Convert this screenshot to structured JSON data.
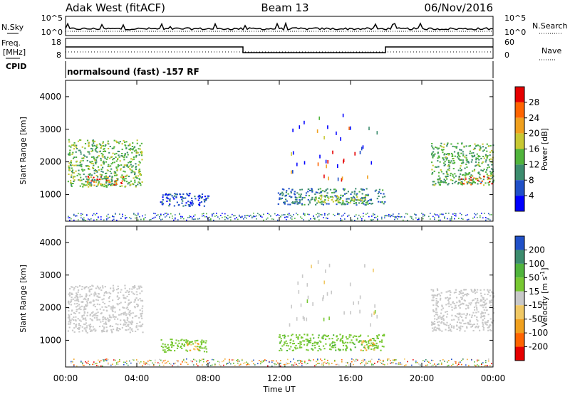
{
  "header": {
    "station": "Adak West (fitACF)",
    "beam": "Beam 13",
    "date": "06/Nov/2016"
  },
  "nsky_panel": {
    "left_label": "N.Sky",
    "right_label": "N.Search",
    "left_ticks": [
      "10^5",
      "10^0"
    ],
    "right_ticks": [
      "10^5",
      "10^0"
    ]
  },
  "freq_panel": {
    "left_label_1": "Freq.",
    "left_label_2": "[MHz]",
    "right_label": "Nave",
    "left_ticks": [
      "18",
      "8"
    ],
    "right_ticks": [
      "60",
      "0"
    ],
    "cpid_label": "CPID"
  },
  "cpid_text": "normalsound (fast) -157 RF",
  "x_axis": {
    "label": "Time UT",
    "ticks": [
      "00:00",
      "04:00",
      "08:00",
      "12:00",
      "16:00",
      "20:00",
      "00:00"
    ]
  },
  "power_panel": {
    "ylabel": "Slant Range [km]",
    "yticks": [
      "1000",
      "2000",
      "3000",
      "4000"
    ],
    "colorbar_label": "Power [dB]",
    "colorbar_ticks": [
      "4",
      "8",
      "12",
      "16",
      "20",
      "24",
      "28"
    ]
  },
  "velocity_panel": {
    "ylabel": "Slant Range [km]",
    "yticks": [
      "1000",
      "2000",
      "3000",
      "4000"
    ],
    "colorbar_label": "Velocity [m s",
    "colorbar_label_sup": "-1",
    "colorbar_label_end": "]",
    "colorbar_ticks": [
      "-200",
      "-100",
      "-50",
      "-15",
      "15",
      "50",
      "100",
      "200"
    ]
  },
  "chart_data": [
    {
      "type": "heatmap",
      "quantity": "Power [dB]",
      "x_range_hours": [
        0,
        24
      ],
      "y_range_km": [
        180,
        4500
      ],
      "color_range": [
        0,
        32
      ],
      "palette": [
        "#0000ff",
        "#2050c8",
        "#3c8c6e",
        "#50b43c",
        "#c8c832",
        "#f0a01e",
        "#ff6400",
        "#e60000"
      ],
      "regions": [
        {
          "t0": 0.1,
          "t1": 4.3,
          "r0": 1250,
          "r1": 2700,
          "level": 14
        },
        {
          "t0": 1.2,
          "t1": 3.2,
          "r0": 1300,
          "r1": 1600,
          "level": 21
        },
        {
          "t0": 5.3,
          "t1": 8.0,
          "r0": 650,
          "r1": 1050,
          "level": 6
        },
        {
          "t0": 11.9,
          "t1": 17.9,
          "r0": 700,
          "r1": 1200,
          "level": 9
        },
        {
          "t0": 14.0,
          "t1": 17.0,
          "r0": 750,
          "r1": 1000,
          "level": 16
        },
        {
          "t0": 20.5,
          "t1": 24.0,
          "r0": 1300,
          "r1": 2600,
          "level": 13
        },
        {
          "t0": 22.0,
          "t1": 24.0,
          "r0": 1300,
          "r1": 1600,
          "level": 22
        }
      ]
    },
    {
      "type": "heatmap",
      "quantity": "Velocity [m s-1]",
      "x_range_hours": [
        0,
        24
      ],
      "y_range_km": [
        180,
        4500
      ],
      "color_range": [
        -250,
        250
      ],
      "palette": [
        "#e60000",
        "#ff6400",
        "#f0a01e",
        "#f0c864",
        "#c8c8c8",
        "#78c832",
        "#50b43c",
        "#3c8c6e",
        "#2050c8"
      ],
      "regions": [
        {
          "t0": 0.1,
          "t1": 4.3,
          "r0": 1250,
          "r1": 2700,
          "level": 0
        },
        {
          "t0": 5.3,
          "t1": 8.0,
          "r0": 650,
          "r1": 1050,
          "level": 30
        },
        {
          "t0": 6.8,
          "t1": 7.5,
          "r0": 700,
          "r1": 950,
          "level": -50
        },
        {
          "t0": 11.9,
          "t1": 17.9,
          "r0": 700,
          "r1": 1200,
          "level": 40
        },
        {
          "t0": 16.5,
          "t1": 17.3,
          "r0": 700,
          "r1": 1050,
          "level": -50
        },
        {
          "t0": 20.5,
          "t1": 24.0,
          "r0": 1300,
          "r1": 2600,
          "level": 0
        }
      ]
    }
  ]
}
